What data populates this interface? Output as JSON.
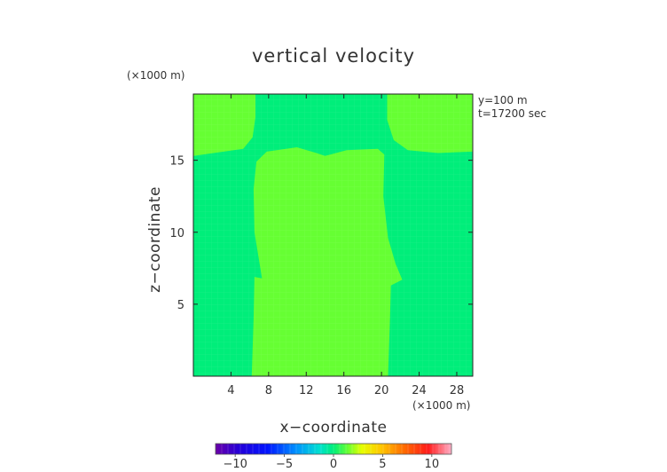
{
  "chart_data": {
    "type": "heatmap",
    "title": "vertical velocity",
    "xlabel": "x−coordinate",
    "ylabel": "z−coordinate",
    "x_unit": "(×1000 m)",
    "y_unit": "(×1000 m)",
    "annotations": [
      "y=100 m",
      "t=17200 sec"
    ],
    "xlim": [
      0,
      29.7
    ],
    "ylim": [
      0,
      19.6
    ],
    "x_ticks": [
      4,
      8,
      12,
      16,
      20,
      24,
      28
    ],
    "y_ticks": [
      5,
      10,
      15
    ],
    "x_tick_labels": [
      "4",
      "8",
      "12",
      "16",
      "20",
      "24",
      "28"
    ],
    "y_tick_labels": [
      "5",
      "10",
      "15"
    ],
    "grid": false,
    "colorbar": {
      "range": [
        -12,
        12
      ],
      "tick_values": [
        -10,
        -5,
        0,
        5,
        10
      ],
      "tick_labels": [
        "−10",
        "−5",
        "0",
        "5",
        "10"
      ]
    },
    "background_level": 0,
    "background_color": "#00ee7a",
    "updraft_level": 1,
    "updraft_color": "#66ff33",
    "regions": [
      {
        "name": "central-updraft",
        "level": 1,
        "outline": [
          [
            6.2,
            0
          ],
          [
            6.4,
            4
          ],
          [
            6.5,
            6.9
          ],
          [
            7.3,
            6.8
          ],
          [
            7.0,
            8
          ],
          [
            6.5,
            10
          ],
          [
            6.4,
            13
          ],
          [
            6.7,
            14.9
          ],
          [
            7.8,
            15.6
          ],
          [
            11,
            15.9
          ],
          [
            13.1,
            15.5
          ],
          [
            14,
            15.3
          ],
          [
            16.3,
            15.7
          ],
          [
            19.6,
            15.8
          ],
          [
            20.3,
            15.4
          ],
          [
            20.2,
            12.5
          ],
          [
            20.7,
            9.6
          ],
          [
            21.5,
            7.8
          ],
          [
            22.2,
            6.7
          ],
          [
            21.0,
            6.3
          ],
          [
            20.9,
            4
          ],
          [
            20.7,
            0
          ]
        ]
      },
      {
        "name": "upper-left-updraft",
        "level": 1,
        "outline": [
          [
            0,
            15.3
          ],
          [
            5.3,
            15.8
          ],
          [
            6.3,
            16.6
          ],
          [
            6.6,
            18
          ],
          [
            6.6,
            19.6
          ],
          [
            0,
            19.6
          ]
        ]
      },
      {
        "name": "upper-right-updraft",
        "level": 1,
        "outline": [
          [
            20.6,
            19.6
          ],
          [
            20.6,
            17.8
          ],
          [
            21.3,
            16.4
          ],
          [
            22.8,
            15.7
          ],
          [
            26,
            15.5
          ],
          [
            29.7,
            15.6
          ],
          [
            29.7,
            19.6
          ]
        ]
      }
    ]
  }
}
